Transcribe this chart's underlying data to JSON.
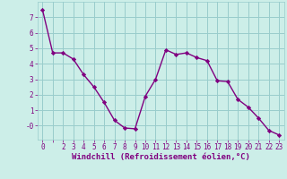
{
  "x": [
    0,
    1,
    2,
    3,
    4,
    5,
    6,
    7,
    8,
    9,
    10,
    11,
    12,
    13,
    14,
    15,
    16,
    17,
    18,
    19,
    20,
    21,
    22,
    23
  ],
  "y": [
    7.5,
    4.7,
    4.7,
    4.3,
    3.3,
    2.5,
    1.5,
    0.35,
    -0.15,
    -0.2,
    1.9,
    3.0,
    4.9,
    4.6,
    4.7,
    4.4,
    4.2,
    2.9,
    2.85,
    1.7,
    1.2,
    0.5,
    -0.3,
    -0.6
  ],
  "line_color": "#800080",
  "marker": "D",
  "marker_size": 2.2,
  "bg_color": "#cceee8",
  "grid_color": "#99cccc",
  "xlabel": "Windchill (Refroidissement éolien,°C)",
  "xlabel_color": "#800080",
  "tick_color": "#800080",
  "ylim": [
    -0.9,
    8.0
  ],
  "xlim": [
    -0.5,
    23.5
  ],
  "yticks": [
    0,
    1,
    2,
    3,
    4,
    5,
    6,
    7
  ],
  "ytick_labels": [
    "-0",
    "1",
    "2",
    "3",
    "4",
    "5",
    "6",
    "7"
  ],
  "xtick_labels": [
    "0",
    "",
    "2",
    "3",
    "4",
    "5",
    "6",
    "7",
    "8",
    "9",
    "10",
    "11",
    "12",
    "13",
    "14",
    "15",
    "16",
    "17",
    "18",
    "19",
    "20",
    "21",
    "22",
    "23"
  ],
  "line_width": 1.0,
  "label_fontsize": 6.5,
  "tick_fontsize": 5.5
}
